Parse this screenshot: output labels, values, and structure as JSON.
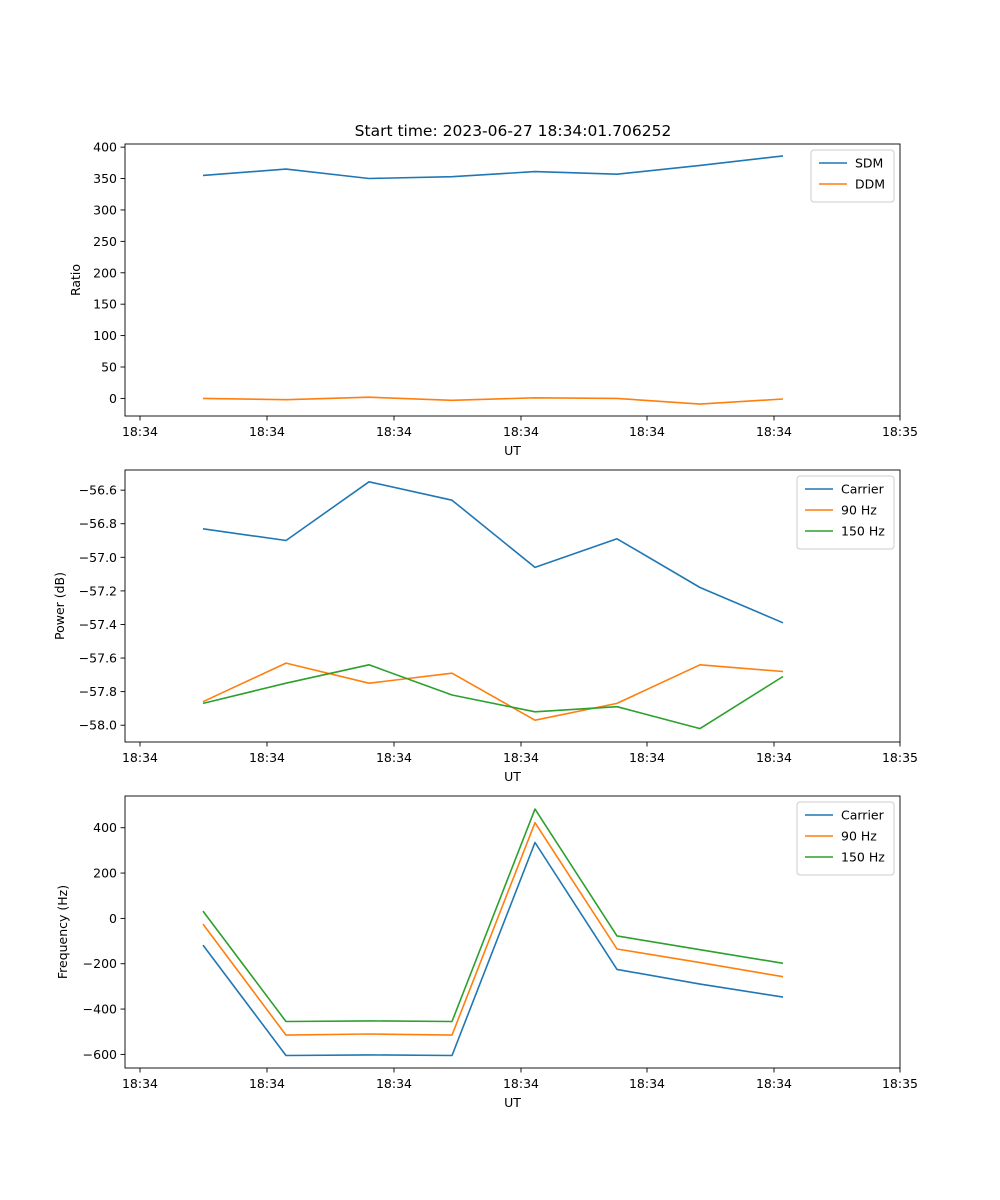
{
  "figure_title": "Start time: 2023-06-27 18:34:01.706252",
  "colors": {
    "blue": "#1f77b4",
    "orange": "#ff7f0e",
    "green": "#2ca02c"
  },
  "chart_data": [
    {
      "type": "line",
      "xlabel": "UT",
      "ylabel": "Ratio",
      "x_tick_labels": [
        "18:34",
        "18:34",
        "18:34",
        "18:34",
        "18:34",
        "18:34",
        "18:35"
      ],
      "ylim": [
        -28,
        405
      ],
      "y_ticks": [
        0,
        50,
        100,
        150,
        200,
        250,
        300,
        350,
        400
      ],
      "y_tick_labels": [
        "0",
        "50",
        "100",
        "150",
        "200",
        "250",
        "300",
        "350",
        "400"
      ],
      "grid": false,
      "legend_position": "top-right",
      "series": [
        {
          "name": "SDM",
          "color": "#1f77b4",
          "values": [
            355,
            365,
            350,
            353,
            361,
            357,
            371,
            386
          ]
        },
        {
          "name": "DDM",
          "color": "#ff7f0e",
          "values": [
            0,
            -2,
            2,
            -3,
            1,
            0,
            -9,
            -1
          ]
        }
      ]
    },
    {
      "type": "line",
      "xlabel": "UT",
      "ylabel": "Power (dB)",
      "x_tick_labels": [
        "18:34",
        "18:34",
        "18:34",
        "18:34",
        "18:34",
        "18:34",
        "18:35"
      ],
      "ylim": [
        -58.1,
        -56.48
      ],
      "y_ticks": [
        -58.0,
        -57.8,
        -57.6,
        -57.4,
        -57.2,
        -57.0,
        -56.8,
        -56.6
      ],
      "y_tick_labels": [
        "−58.0",
        "−57.8",
        "−57.6",
        "−57.4",
        "−57.2",
        "−57.0",
        "−56.8",
        "−56.6"
      ],
      "grid": false,
      "legend_position": "top-right",
      "series": [
        {
          "name": "Carrier",
          "color": "#1f77b4",
          "values": [
            -56.83,
            -56.9,
            -56.55,
            -56.66,
            -57.06,
            -56.89,
            -57.18,
            -57.39
          ]
        },
        {
          "name": "90 Hz",
          "color": "#ff7f0e",
          "values": [
            -57.86,
            -57.63,
            -57.75,
            -57.69,
            -57.97,
            -57.87,
            -57.64,
            -57.68
          ]
        },
        {
          "name": "150 Hz",
          "color": "#2ca02c",
          "values": [
            -57.87,
            -57.75,
            -57.64,
            -57.82,
            -57.92,
            -57.89,
            -58.02,
            -57.71
          ]
        }
      ]
    },
    {
      "type": "line",
      "xlabel": "UT",
      "ylabel": "Frequency (Hz)",
      "x_tick_labels": [
        "18:34",
        "18:34",
        "18:34",
        "18:34",
        "18:34",
        "18:34",
        "18:35"
      ],
      "ylim": [
        -660,
        540
      ],
      "y_ticks": [
        -600,
        -400,
        -200,
        0,
        200,
        400
      ],
      "y_tick_labels": [
        "−600",
        "−400",
        "−200",
        "0",
        "200",
        "400"
      ],
      "grid": false,
      "legend_position": "top-right",
      "series": [
        {
          "name": "Carrier",
          "color": "#1f77b4",
          "values": [
            -118,
            -605,
            -602,
            -605,
            335,
            -225,
            -290,
            -347
          ]
        },
        {
          "name": "90 Hz",
          "color": "#ff7f0e",
          "values": [
            -25,
            -515,
            -510,
            -515,
            422,
            -135,
            -195,
            -257
          ]
        },
        {
          "name": "150 Hz",
          "color": "#2ca02c",
          "values": [
            32,
            -455,
            -452,
            -455,
            482,
            -77,
            -138,
            -198
          ]
        }
      ]
    }
  ]
}
